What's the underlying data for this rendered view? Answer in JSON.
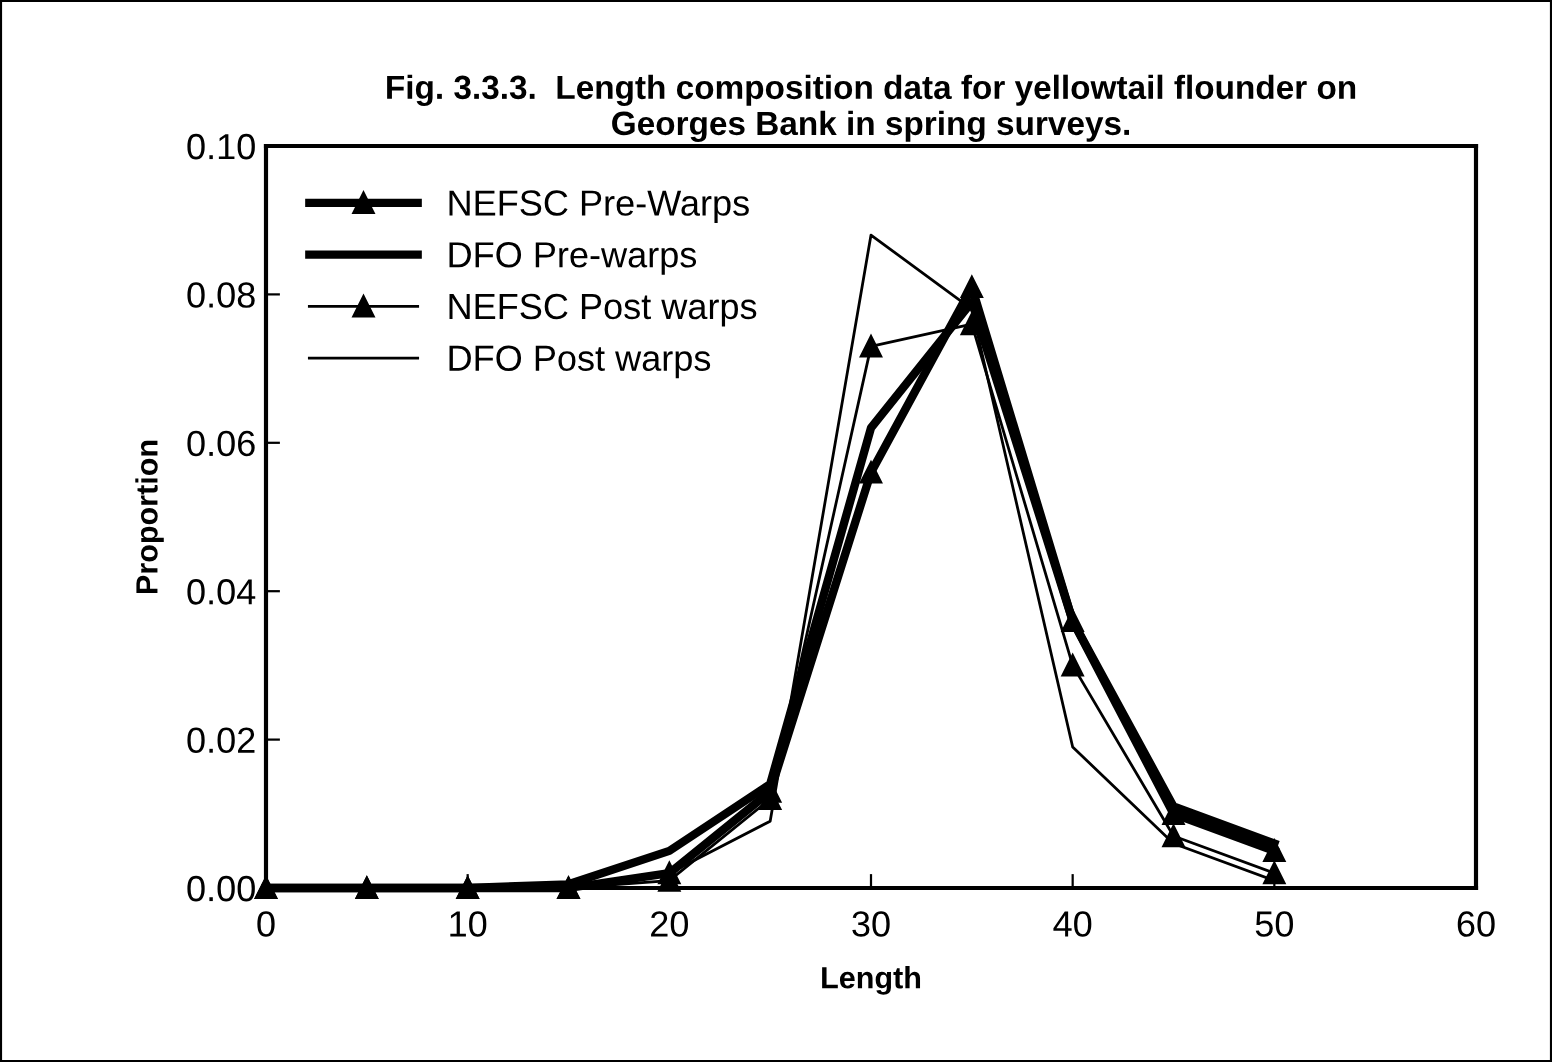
{
  "chart_data": {
    "type": "line",
    "title": "Fig. 3.3.3.  Length composition data for yellowtail flounder on\nGeorges Bank in spring surveys.",
    "xlabel": "Length",
    "ylabel": "Proportion",
    "x": [
      0,
      5,
      10,
      15,
      20,
      25,
      30,
      35,
      40,
      45,
      50
    ],
    "series": [
      {
        "name": "NEFSC Pre-Warps",
        "color": "#000000",
        "marker": "triangle",
        "values": [
          0.0,
          0.0,
          0.0,
          0.0,
          0.002,
          0.013,
          0.056,
          0.081,
          0.036,
          0.01,
          0.005
        ]
      },
      {
        "name": "DFO Pre-warps",
        "color": "#000000",
        "marker": "none",
        "values": [
          0.0,
          0.0,
          0.0,
          0.0005,
          0.005,
          0.014,
          0.062,
          0.079,
          0.036,
          0.011,
          0.006
        ]
      },
      {
        "name": "NEFSC Post warps",
        "color": "#000000",
        "marker": "triangle",
        "values": [
          0.0,
          0.0,
          0.0,
          0.0,
          0.001,
          0.012,
          0.073,
          0.076,
          0.03,
          0.007,
          0.002
        ]
      },
      {
        "name": "DFO Post warps",
        "color": "#000000",
        "marker": "none",
        "values": [
          0.0,
          0.0,
          0.0,
          0.0,
          0.002,
          0.009,
          0.088,
          0.078,
          0.019,
          0.006,
          0.001
        ]
      }
    ],
    "xlim": [
      0,
      60
    ],
    "xticks": [
      0,
      10,
      20,
      30,
      40,
      50,
      60
    ],
    "ylim": [
      0,
      0.1
    ],
    "yticks": [
      {
        "value": 0,
        "label": "0.00"
      },
      {
        "value": 0.02,
        "label": "0.02"
      },
      {
        "value": 0.04,
        "label": "0.04"
      },
      {
        "value": 0.06,
        "label": "0.06"
      },
      {
        "value": 0.08,
        "label": "0.08"
      },
      {
        "value": 0.1,
        "label": "0.10"
      }
    ],
    "grid": false,
    "legend": "top left",
    "line_style": "solid"
  }
}
